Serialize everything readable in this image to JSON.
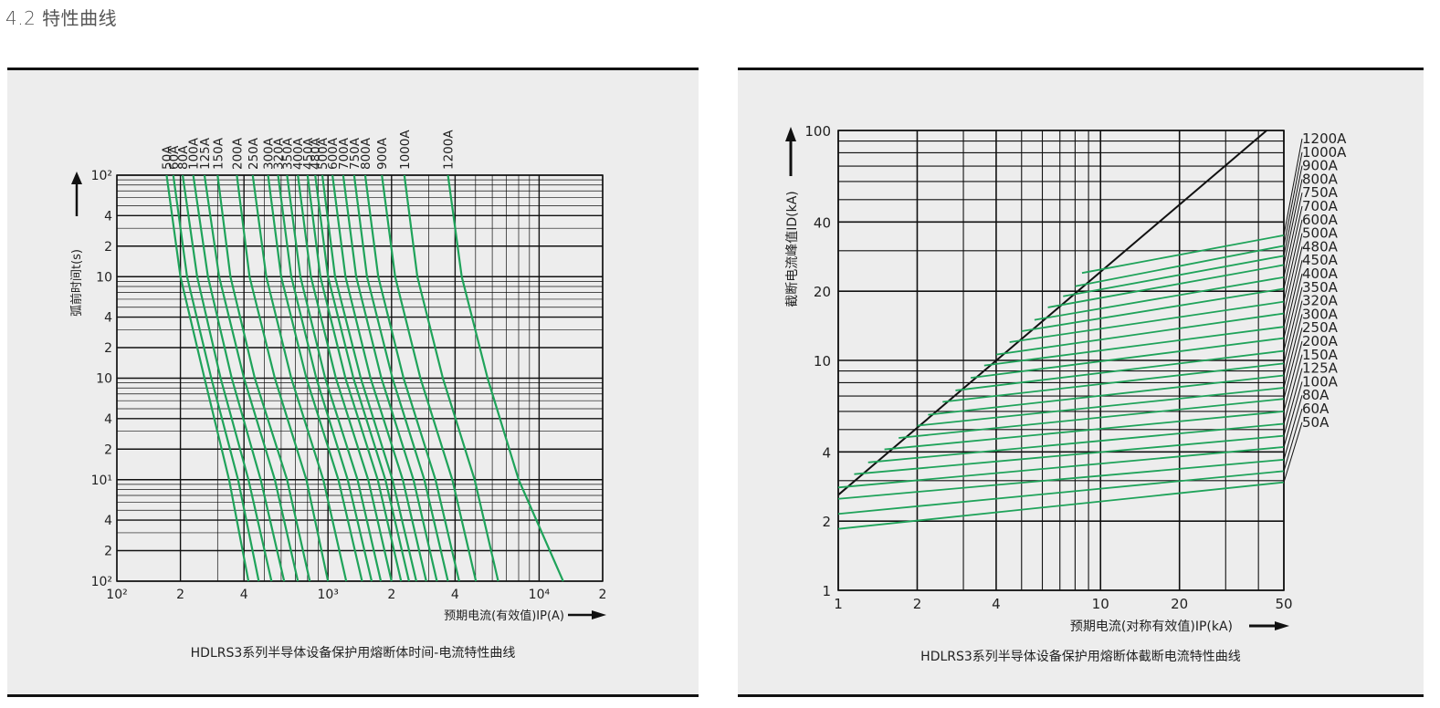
{
  "heading": "4.2 特性曲线",
  "colors": {
    "curve": "#1fa35a",
    "grid": "#111111",
    "panel_bg": "#ededed"
  },
  "chart_data": [
    {
      "type": "line",
      "title": "HDLRS3系列半导体设备保护用熔断体时间-电流特性曲线",
      "xlabel": "预期电流(有效值)IP(A)",
      "ylabel": "弧前时间t(s)",
      "x_scale": "log",
      "y_scale": "log",
      "xlim": [
        100,
        20000
      ],
      "ylim": [
        0.01,
        100
      ],
      "x_tick_labels": [
        "10²",
        "2",
        "4",
        "10³",
        "2",
        "4",
        "10⁴",
        "2"
      ],
      "y_tick_labels": [
        "10²",
        "4",
        "2",
        "10",
        "4",
        "2",
        "10",
        "4",
        "2",
        "10¹",
        "4",
        "2",
        "10²"
      ],
      "grid": true,
      "legend": "curve labels along top",
      "series": [
        {
          "name": "50A",
          "x": [
            172,
            200,
            260,
            340,
            420
          ],
          "y": [
            100,
            10,
            1,
            0.1,
            0.01
          ]
        },
        {
          "name": "60A",
          "x": [
            185,
            215,
            280,
            375,
            470
          ],
          "y": [
            100,
            10,
            1,
            0.1,
            0.01
          ]
        },
        {
          "name": "80A",
          "x": [
            205,
            240,
            310,
            420,
            540
          ],
          "y": [
            100,
            10,
            1,
            0.1,
            0.01
          ]
        },
        {
          "name": "100A",
          "x": [
            230,
            270,
            350,
            480,
            620
          ],
          "y": [
            100,
            10,
            1,
            0.1,
            0.01
          ]
        },
        {
          "name": "125A",
          "x": [
            260,
            305,
            400,
            560,
            720
          ],
          "y": [
            100,
            10,
            1,
            0.1,
            0.01
          ]
        },
        {
          "name": "150A",
          "x": [
            300,
            345,
            450,
            640,
            820
          ],
          "y": [
            100,
            10,
            1,
            0.1,
            0.01
          ]
        },
        {
          "name": "200A",
          "x": [
            370,
            425,
            560,
            790,
            1000
          ],
          "y": [
            100,
            10,
            1,
            0.1,
            0.01
          ]
        },
        {
          "name": "250A",
          "x": [
            440,
            510,
            670,
            950,
            1220
          ],
          "y": [
            100,
            10,
            1,
            0.1,
            0.01
          ]
        },
        {
          "name": "300A",
          "x": [
            520,
            600,
            790,
            1120,
            1450
          ],
          "y": [
            100,
            10,
            1,
            0.1,
            0.01
          ]
        },
        {
          "name": "320A",
          "x": [
            580,
            670,
            880,
            1240,
            1610
          ],
          "y": [
            100,
            10,
            1,
            0.1,
            0.01
          ]
        },
        {
          "name": "350A",
          "x": [
            640,
            740,
            970,
            1380,
            1780
          ],
          "y": [
            100,
            10,
            1,
            0.1,
            0.01
          ]
        },
        {
          "name": "400A",
          "x": [
            720,
            830,
            1090,
            1550,
            2000
          ],
          "y": [
            100,
            10,
            1,
            0.1,
            0.01
          ]
        },
        {
          "name": "450A",
          "x": [
            800,
            920,
            1210,
            1720,
            2220
          ],
          "y": [
            100,
            10,
            1,
            0.1,
            0.01
          ]
        },
        {
          "name": "480A",
          "x": [
            870,
            1000,
            1320,
            1870,
            2420
          ],
          "y": [
            100,
            10,
            1,
            0.1,
            0.01
          ]
        },
        {
          "name": "500A",
          "x": [
            940,
            1080,
            1430,
            2020,
            2620
          ],
          "y": [
            100,
            10,
            1,
            0.1,
            0.01
          ]
        },
        {
          "name": "600A",
          "x": [
            1050,
            1210,
            1590,
            2260,
            2920
          ],
          "y": [
            100,
            10,
            1,
            0.1,
            0.01
          ]
        },
        {
          "name": "700A",
          "x": [
            1180,
            1360,
            1790,
            2540,
            3280
          ],
          "y": [
            100,
            10,
            1,
            0.1,
            0.01
          ]
        },
        {
          "name": "750A",
          "x": [
            1330,
            1530,
            2020,
            2860,
            3700
          ],
          "y": [
            100,
            10,
            1,
            0.1,
            0.01
          ]
        },
        {
          "name": "800A",
          "x": [
            1500,
            1730,
            2280,
            3230,
            4180
          ],
          "y": [
            100,
            10,
            1,
            0.1,
            0.01
          ]
        },
        {
          "name": "900A",
          "x": [
            1800,
            2080,
            2740,
            3880,
            5020
          ],
          "y": [
            100,
            10,
            1,
            0.1,
            0.01
          ]
        },
        {
          "name": "1000A",
          "x": [
            2300,
            2650,
            3500,
            4950,
            6400
          ],
          "y": [
            100,
            10,
            1,
            0.1,
            0.01
          ]
        },
        {
          "name": "1200A",
          "x": [
            3700,
            4300,
            5700,
            8000,
            13000
          ],
          "y": [
            100,
            10,
            1,
            0.1,
            0.01
          ]
        }
      ]
    },
    {
      "type": "line",
      "title": "HDLRS3系列半导体设备保护用熔断体截断电流特性曲线",
      "xlabel": "预期电流(对称有效值)IP(kA)",
      "ylabel": "截断电流峰值ID(kA)",
      "x_scale": "log",
      "y_scale": "log",
      "xlim": [
        1,
        50
      ],
      "ylim": [
        1,
        100
      ],
      "x_tick_labels": [
        "1",
        "2",
        "4",
        "10",
        "20",
        "50"
      ],
      "y_tick_labels": [
        "100",
        "40",
        "20",
        "10",
        "4",
        "2",
        "1"
      ],
      "grid": true,
      "legend": "right",
      "reference_line": {
        "x": [
          1,
          43
        ],
        "y": [
          2.6,
          100
        ]
      },
      "series": [
        {
          "name": "1200A",
          "x": [
            8.5,
            50
          ],
          "y": [
            24,
            35
          ]
        },
        {
          "name": "1000A",
          "x": [
            8,
            50
          ],
          "y": [
            21,
            31.5
          ]
        },
        {
          "name": "900A",
          "x": [
            7.2,
            50
          ],
          "y": [
            19,
            28.5
          ]
        },
        {
          "name": "800A",
          "x": [
            6.3,
            50
          ],
          "y": [
            17,
            26
          ]
        },
        {
          "name": "750A",
          "x": [
            5.6,
            50
          ],
          "y": [
            15,
            23
          ]
        },
        {
          "name": "700A",
          "x": [
            5,
            50
          ],
          "y": [
            13.4,
            20.5
          ]
        },
        {
          "name": "600A",
          "x": [
            4.5,
            50
          ],
          "y": [
            12,
            18
          ]
        },
        {
          "name": "500A",
          "x": [
            4,
            50
          ],
          "y": [
            10.6,
            16
          ]
        },
        {
          "name": "480A",
          "x": [
            3.6,
            50
          ],
          "y": [
            9.5,
            14
          ]
        },
        {
          "name": "450A",
          "x": [
            3.2,
            50
          ],
          "y": [
            8.4,
            12.5
          ]
        },
        {
          "name": "400A",
          "x": [
            2.8,
            50
          ],
          "y": [
            7.4,
            11
          ]
        },
        {
          "name": "350A",
          "x": [
            2.5,
            50
          ],
          "y": [
            6.6,
            9.7
          ]
        },
        {
          "name": "320A",
          "x": [
            2.2,
            50
          ],
          "y": [
            5.8,
            8.6
          ]
        },
        {
          "name": "300A",
          "x": [
            2,
            50
          ],
          "y": [
            5.2,
            7.6
          ]
        },
        {
          "name": "250A",
          "x": [
            1.7,
            50
          ],
          "y": [
            4.6,
            6.8
          ]
        },
        {
          "name": "200A",
          "x": [
            1.5,
            50
          ],
          "y": [
            4.1,
            6.0
          ]
        },
        {
          "name": "150A",
          "x": [
            1.3,
            50
          ],
          "y": [
            3.6,
            5.3
          ]
        },
        {
          "name": "125A",
          "x": [
            1.15,
            50
          ],
          "y": [
            3.2,
            4.7
          ]
        },
        {
          "name": "100A",
          "x": [
            1,
            50
          ],
          "y": [
            2.8,
            4.2
          ]
        },
        {
          "name": "80A",
          "x": [
            1,
            50
          ],
          "y": [
            2.5,
            3.7
          ]
        },
        {
          "name": "60A",
          "x": [
            1,
            50
          ],
          "y": [
            2.15,
            3.3
          ]
        },
        {
          "name": "50A",
          "x": [
            1,
            50
          ],
          "y": [
            1.85,
            2.95
          ]
        }
      ]
    }
  ]
}
